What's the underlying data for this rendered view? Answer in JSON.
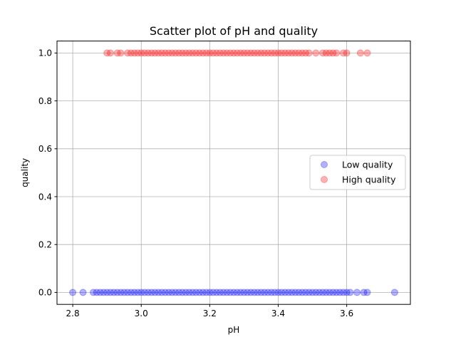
{
  "chart_data": {
    "type": "scatter",
    "title": "Scatter plot of pH and quality",
    "xlabel": "pH",
    "ylabel": "quality",
    "xlim": [
      2.754,
      3.786
    ],
    "ylim": [
      -0.05,
      1.05
    ],
    "xticks": [
      2.8,
      3.0,
      3.2,
      3.4,
      3.6
    ],
    "xtick_labels": [
      "2.8",
      "3.0",
      "3.2",
      "3.4",
      "3.6"
    ],
    "yticks": [
      0.0,
      0.2,
      0.4,
      0.6,
      0.8,
      1.0
    ],
    "ytick_labels": [
      "0.0",
      "0.2",
      "0.4",
      "0.6",
      "0.8",
      "1.0"
    ],
    "grid": true,
    "legend_position": "center-right",
    "series": [
      {
        "name": "Low quality",
        "color": "#0000ff",
        "alpha": 0.3,
        "y": 0,
        "x": [
          2.8,
          2.83,
          2.86,
          2.87,
          2.88,
          2.89,
          2.9,
          2.91,
          2.92,
          2.93,
          2.94,
          2.95,
          2.96,
          2.97,
          2.98,
          2.99,
          3.0,
          3.01,
          3.02,
          3.03,
          3.04,
          3.05,
          3.06,
          3.07,
          3.08,
          3.09,
          3.1,
          3.11,
          3.12,
          3.13,
          3.14,
          3.15,
          3.16,
          3.17,
          3.18,
          3.19,
          3.2,
          3.21,
          3.22,
          3.23,
          3.24,
          3.25,
          3.26,
          3.27,
          3.28,
          3.29,
          3.3,
          3.31,
          3.32,
          3.33,
          3.34,
          3.35,
          3.36,
          3.37,
          3.38,
          3.39,
          3.4,
          3.41,
          3.42,
          3.43,
          3.44,
          3.45,
          3.46,
          3.47,
          3.48,
          3.49,
          3.5,
          3.51,
          3.52,
          3.53,
          3.54,
          3.55,
          3.56,
          3.57,
          3.58,
          3.59,
          3.6,
          3.61,
          3.63,
          3.65,
          3.66,
          3.74
        ]
      },
      {
        "name": "High quality",
        "color": "#ff0000",
        "alpha": 0.3,
        "y": 1,
        "x": [
          2.9,
          2.91,
          2.93,
          2.94,
          2.96,
          2.97,
          2.98,
          2.99,
          3.0,
          3.01,
          3.02,
          3.03,
          3.04,
          3.05,
          3.06,
          3.07,
          3.08,
          3.09,
          3.1,
          3.11,
          3.12,
          3.13,
          3.14,
          3.15,
          3.16,
          3.17,
          3.18,
          3.19,
          3.2,
          3.21,
          3.22,
          3.23,
          3.24,
          3.25,
          3.26,
          3.27,
          3.28,
          3.29,
          3.3,
          3.31,
          3.32,
          3.33,
          3.34,
          3.35,
          3.36,
          3.37,
          3.38,
          3.39,
          3.4,
          3.41,
          3.42,
          3.43,
          3.44,
          3.45,
          3.46,
          3.47,
          3.48,
          3.49,
          3.51,
          3.53,
          3.54,
          3.55,
          3.56,
          3.57,
          3.59,
          3.6,
          3.64,
          3.66
        ]
      }
    ]
  }
}
